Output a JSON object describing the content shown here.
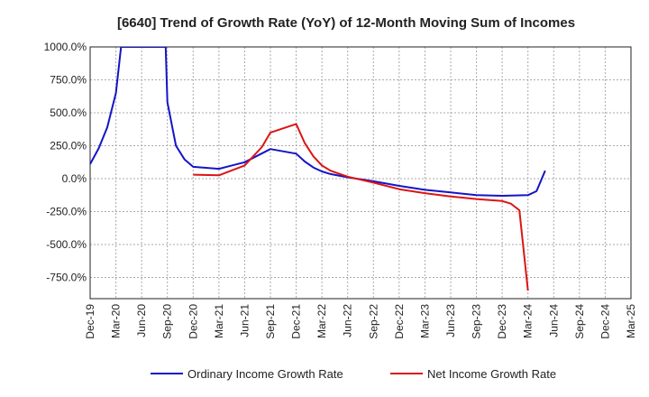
{
  "chart_data": {
    "type": "line",
    "title": "[6640]  Trend of Growth Rate (YoY) of 12-Month Moving Sum of Incomes",
    "xlabel": "",
    "ylabel": "",
    "ylim": [
      -900,
      1000
    ],
    "y_ticks": [
      {
        "value": 1000,
        "label": "1000.0%"
      },
      {
        "value": 750,
        "label": "750.0%"
      },
      {
        "value": 500,
        "label": "500.0%"
      },
      {
        "value": 250,
        "label": "250.0%"
      },
      {
        "value": 0,
        "label": "0.0%"
      },
      {
        "value": -250,
        "label": "-250.0%"
      },
      {
        "value": -500,
        "label": "-500.0%"
      },
      {
        "value": -750,
        "label": "-750.0%"
      }
    ],
    "x_ticks": [
      "Dec-19",
      "Mar-20",
      "Jun-20",
      "Sep-20",
      "Dec-20",
      "Mar-21",
      "Jun-21",
      "Sep-21",
      "Dec-21",
      "Mar-22",
      "Jun-22",
      "Sep-22",
      "Dec-22",
      "Mar-23",
      "Jun-23",
      "Sep-23",
      "Dec-23",
      "Mar-24",
      "Jun-24",
      "Sep-24",
      "Dec-24",
      "Mar-25"
    ],
    "grid": true,
    "legend_position": "bottom",
    "series": [
      {
        "name": "Ordinary Income Growth Rate",
        "color": "#1414c8",
        "points": [
          [
            0,
            110
          ],
          [
            1,
            230
          ],
          [
            2,
            390
          ],
          [
            3,
            650
          ],
          [
            3.6,
            1000
          ],
          [
            8.8,
            1000
          ],
          [
            9,
            580
          ],
          [
            10,
            250
          ],
          [
            11,
            145
          ],
          [
            12,
            90
          ],
          [
            15,
            75
          ],
          [
            18,
            125
          ],
          [
            21,
            225
          ],
          [
            24,
            190
          ],
          [
            25,
            130
          ],
          [
            26,
            85
          ],
          [
            27,
            55
          ],
          [
            28,
            35
          ],
          [
            30,
            10
          ],
          [
            33,
            -20
          ],
          [
            36,
            -55
          ],
          [
            39,
            -85
          ],
          [
            42,
            -105
          ],
          [
            45,
            -125
          ],
          [
            48,
            -130
          ],
          [
            51,
            -125
          ],
          [
            52,
            -95
          ],
          [
            53,
            60
          ]
        ]
      },
      {
        "name": "Net Income Growth Rate",
        "color": "#dc1414",
        "points": [
          [
            12,
            30
          ],
          [
            15,
            25
          ],
          [
            18,
            100
          ],
          [
            20,
            240
          ],
          [
            21,
            350
          ],
          [
            24,
            415
          ],
          [
            25,
            270
          ],
          [
            26,
            170
          ],
          [
            27,
            100
          ],
          [
            28,
            60
          ],
          [
            30,
            15
          ],
          [
            33,
            -30
          ],
          [
            36,
            -80
          ],
          [
            39,
            -110
          ],
          [
            42,
            -135
          ],
          [
            45,
            -155
          ],
          [
            48,
            -170
          ],
          [
            49,
            -190
          ],
          [
            50,
            -240
          ],
          [
            51,
            -850
          ]
        ]
      }
    ]
  }
}
